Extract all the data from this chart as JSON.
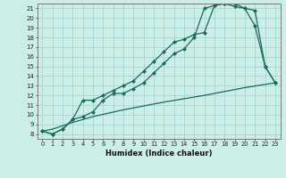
{
  "xlabel": "Humidex (Indice chaleur)",
  "background_color": "#cceee8",
  "grid_color": "#aad8d0",
  "line_color": "#1a6b5a",
  "xlim": [
    -0.5,
    23.5
  ],
  "ylim": [
    7.5,
    21.5
  ],
  "xticks": [
    0,
    1,
    2,
    3,
    4,
    5,
    6,
    7,
    8,
    9,
    10,
    11,
    12,
    13,
    14,
    15,
    16,
    17,
    18,
    19,
    20,
    21,
    22,
    23
  ],
  "yticks": [
    8,
    9,
    10,
    11,
    12,
    13,
    14,
    15,
    16,
    17,
    18,
    19,
    20,
    21
  ],
  "series1": [
    [
      0,
      8.3
    ],
    [
      1,
      8.0
    ],
    [
      2,
      8.5
    ],
    [
      3,
      9.5
    ],
    [
      4,
      11.5
    ],
    [
      5,
      11.5
    ],
    [
      6,
      12.0
    ],
    [
      7,
      12.5
    ],
    [
      8,
      13.0
    ],
    [
      9,
      13.5
    ],
    [
      10,
      14.5
    ],
    [
      11,
      15.5
    ],
    [
      12,
      16.5
    ],
    [
      13,
      17.5
    ],
    [
      14,
      17.8
    ],
    [
      15,
      18.3
    ],
    [
      16,
      18.5
    ],
    [
      17,
      21.3
    ],
    [
      18,
      21.5
    ],
    [
      19,
      21.2
    ],
    [
      20,
      21.0
    ],
    [
      21,
      20.8
    ],
    [
      22,
      15.0
    ],
    [
      23,
      13.3
    ]
  ],
  "series2": [
    [
      0,
      8.3
    ],
    [
      1,
      8.0
    ],
    [
      2,
      8.5
    ],
    [
      3,
      9.5
    ],
    [
      4,
      9.8
    ],
    [
      5,
      10.3
    ],
    [
      6,
      11.5
    ],
    [
      7,
      12.2
    ],
    [
      8,
      12.2
    ],
    [
      9,
      12.7
    ],
    [
      10,
      13.3
    ],
    [
      11,
      14.3
    ],
    [
      12,
      15.3
    ],
    [
      13,
      16.3
    ],
    [
      14,
      16.8
    ],
    [
      15,
      18.0
    ],
    [
      16,
      21.0
    ],
    [
      17,
      21.3
    ],
    [
      18,
      21.5
    ],
    [
      19,
      21.5
    ],
    [
      20,
      21.0
    ],
    [
      21,
      19.2
    ],
    [
      22,
      15.0
    ],
    [
      23,
      13.3
    ]
  ],
  "series3": [
    [
      0,
      8.3
    ],
    [
      1,
      8.5
    ],
    [
      3,
      9.2
    ],
    [
      5,
      9.8
    ],
    [
      8,
      10.5
    ],
    [
      12,
      11.3
    ],
    [
      16,
      12.0
    ],
    [
      20,
      12.8
    ],
    [
      23,
      13.3
    ]
  ]
}
